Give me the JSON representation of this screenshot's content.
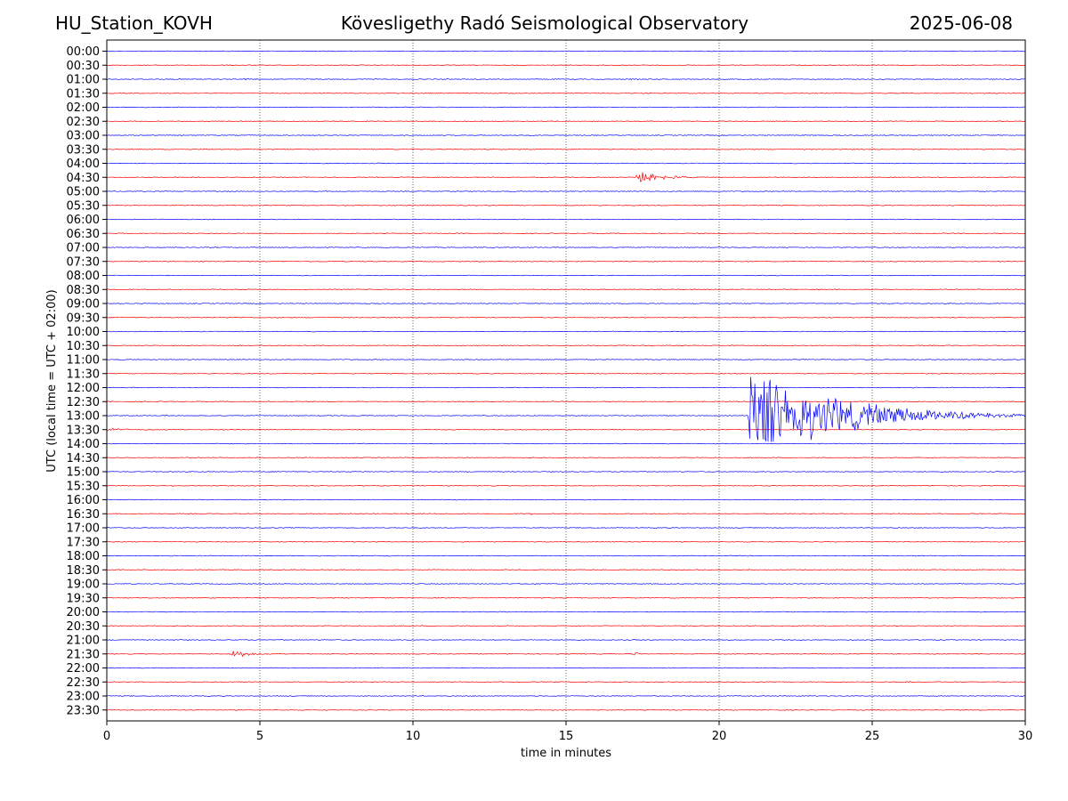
{
  "header": {
    "station": "HU_Station_KOVH",
    "title": "Kövesligethy Radó Seismological Observatory",
    "date": "2025-06-08"
  },
  "chart_data": {
    "type": "line",
    "title": "Kövesligethy Radó Seismological Observatory",
    "xlabel": "time in minutes",
    "ylabel": "UTC (local time = UTC + 02:00)",
    "xlim": [
      0,
      30
    ],
    "xticks": [
      0,
      5,
      10,
      15,
      20,
      25,
      30
    ],
    "grid": "vertical dotted at x ticks",
    "trace_colors": [
      "#0000ff",
      "#ff0000"
    ],
    "rows": [
      "00:00",
      "00:30",
      "01:00",
      "01:30",
      "02:00",
      "02:30",
      "03:00",
      "03:30",
      "04:00",
      "04:30",
      "05:00",
      "05:30",
      "06:00",
      "06:30",
      "07:00",
      "07:30",
      "08:00",
      "08:30",
      "09:00",
      "09:30",
      "10:00",
      "10:30",
      "11:00",
      "11:30",
      "12:00",
      "12:30",
      "13:00",
      "13:30",
      "14:00",
      "14:30",
      "15:00",
      "15:30",
      "16:00",
      "16:30",
      "17:00",
      "17:30",
      "18:00",
      "18:30",
      "19:00",
      "19:30",
      "20:00",
      "20:30",
      "21:00",
      "21:30",
      "22:00",
      "22:30",
      "23:00",
      "23:30"
    ],
    "events": [
      {
        "row": "04:30",
        "start": 17.3,
        "end": 20.0,
        "amplitude": 1.2
      },
      {
        "row": "13:00",
        "start": 20.95,
        "end": 30.0,
        "amplitude": 8.5
      },
      {
        "row": "21:30",
        "start": 4.1,
        "end": 6.0,
        "amplitude": 0.8
      },
      {
        "row": "21:30",
        "start": 17.2,
        "end": 17.8,
        "amplitude": 0.35
      },
      {
        "row": "16:30",
        "start": 13.85,
        "end": 13.95,
        "amplitude": 0.35
      },
      {
        "row": "13:30",
        "start": 0.0,
        "end": 3.5,
        "amplitude": 0.28
      },
      {
        "row": "09:30",
        "start": 26.0,
        "end": 26.6,
        "amplitude": 0.25
      },
      {
        "row": "08:30",
        "start": 11.8,
        "end": 12.4,
        "amplitude": 0.2
      },
      {
        "row": "04:30",
        "start": 6.4,
        "end": 6.6,
        "amplitude": 0.2
      },
      {
        "row": "01:00",
        "start": 4.5,
        "end": 5.0,
        "amplitude": 0.15
      },
      {
        "row": "22:30",
        "start": 26.2,
        "end": 26.4,
        "amplitude": 0.2
      },
      {
        "row": "21:00",
        "start": 2.2,
        "end": 2.4,
        "amplitude": 0.15
      }
    ]
  }
}
